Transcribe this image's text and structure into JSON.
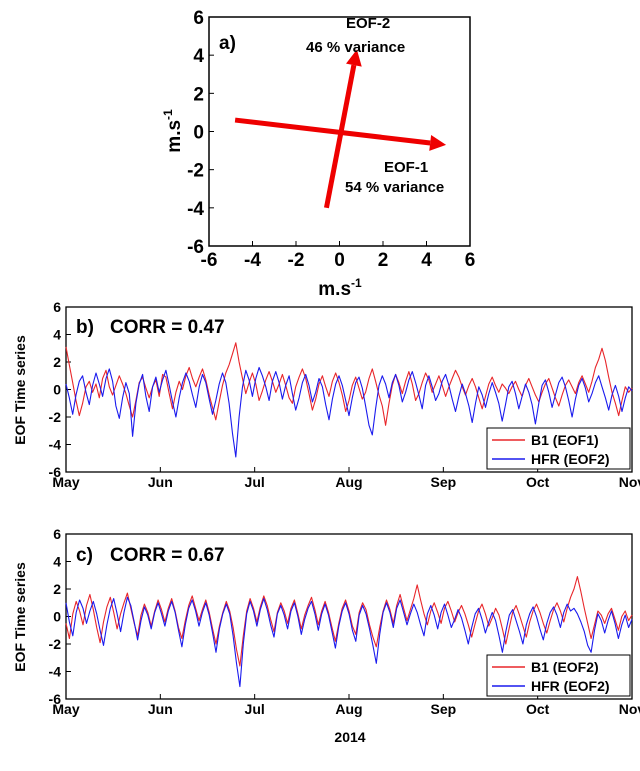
{
  "chart_data": [
    {
      "type": "scatter",
      "panel_label": "a)",
      "xlabel": "m.s-1",
      "ylabel": "m.s-1",
      "xlim": [
        -6,
        6
      ],
      "ylim": [
        -6,
        6
      ],
      "xticks": [
        -6,
        -4,
        -2,
        0,
        2,
        4,
        6
      ],
      "yticks": [
        6,
        4,
        2,
        0,
        -2,
        -4,
        -6
      ],
      "vectors": [
        {
          "name": "EOF-1",
          "label": "EOF-1",
          "variance_label": "54 % variance",
          "color": "#ee0000",
          "from": [
            -4.8,
            0.6
          ],
          "to": [
            4.9,
            -0.7
          ]
        },
        {
          "name": "EOF-2",
          "label": "EOF-2",
          "variance_label": "46 % variance",
          "color": "#ee0000",
          "from": [
            -0.6,
            -4.0
          ],
          "to": [
            0.8,
            4.3
          ]
        }
      ],
      "grid": false
    },
    {
      "type": "line",
      "panel_label": "b)",
      "annotation": "CORR = 0.47",
      "ylabel": "EOF Time series",
      "xlabel": "",
      "ylim": [
        -6,
        6
      ],
      "yticks": [
        6,
        4,
        2,
        0,
        -2,
        -4,
        -6
      ],
      "xticks": [
        "May",
        "Jun",
        "Jul",
        "Aug",
        "Sep",
        "Oct",
        "Nov"
      ],
      "legend_position": "bottom-right",
      "series": [
        {
          "name": "B1 (EOF1)",
          "color": "#e8262a",
          "values": [
            3.1,
            1.8,
            0.5,
            -0.8,
            -1.9,
            -1.0,
            0.2,
            0.6,
            -0.2,
            0.4,
            -0.6,
            0.8,
            1.4,
            0.2,
            -0.4,
            0.3,
            1.0,
            0.4,
            -0.3,
            -1.2,
            -2.0,
            -0.8,
            0.5,
            0.9,
            0.1,
            -0.6,
            0.2,
            0.7,
            -0.5,
            1.1,
            0.9,
            -0.3,
            -1.4,
            -0.2,
            0.6,
            0.0,
            1.0,
            1.6,
            0.8,
            0.2,
            0.9,
            1.5,
            0.7,
            -0.4,
            -1.3,
            -2.2,
            -0.9,
            0.3,
            1.2,
            1.8,
            2.6,
            3.4,
            2.0,
            0.8,
            -0.3,
            0.5,
            1.2,
            0.4,
            -0.8,
            -0.1,
            0.7,
            1.3,
            0.6,
            -0.2,
            0.4,
            1.1,
            0.3,
            -0.6,
            -1.0,
            0.2,
            0.9,
            1.5,
            0.8,
            -0.3,
            -1.5,
            -0.7,
            0.4,
            1.0,
            0.2,
            -0.5,
            0.6,
            1.2,
            0.5,
            -0.4,
            -1.6,
            -0.8,
            0.3,
            0.9,
            0.1,
            -0.7,
            -0.2,
            0.8,
            1.5,
            0.6,
            -0.4,
            -1.2,
            -2.6,
            -1.0,
            0.3,
            1.1,
            0.5,
            -0.3,
            0.6,
            1.3,
            0.4,
            -0.8,
            -0.3,
            0.5,
            1.2,
            0.7,
            -0.2,
            0.4,
            1.0,
            0.3,
            -0.5,
            0.2,
            0.8,
            1.4,
            0.9,
            0.2,
            -0.4,
            0.3,
            0.8,
            0.2,
            -0.6,
            -1.4,
            -0.5,
            0.4,
            0.9,
            0.3,
            -0.2,
            0.4,
            0.1,
            -0.3,
            0.2,
            0.6,
            0.0,
            -0.5,
            0.3,
            0.8,
            0.2,
            -0.4,
            -0.9,
            -0.2,
            0.4,
            0.8,
            0.1,
            -0.6,
            -1.2,
            -0.4,
            0.3,
            0.7,
            0.2,
            -0.3,
            0.5,
            1.0,
            0.4,
            -0.2,
            0.6,
            1.6,
            2.2,
            3.0,
            2.1,
            0.9,
            -0.2,
            -1.0,
            -1.9,
            -0.8,
            0.2,
            -0.2,
            0.1
          ]
        },
        {
          "name": "HFR (EOF2)",
          "color": "#1a1aee",
          "values": [
            0.4,
            -0.6,
            -1.8,
            -0.4,
            0.6,
            1.0,
            -0.2,
            -1.1,
            0.3,
            1.2,
            0.4,
            -0.5,
            0.8,
            1.5,
            0.6,
            -1.2,
            -2.1,
            -0.6,
            0.5,
            -0.3,
            -3.4,
            -1.0,
            0.4,
            1.1,
            -0.5,
            -1.6,
            0.2,
            0.9,
            -0.2,
            0.7,
            1.4,
            0.3,
            -0.9,
            -2.0,
            -0.6,
            0.5,
            1.2,
            0.6,
            -0.4,
            -1.3,
            0.2,
            1.1,
            0.5,
            -0.7,
            -1.8,
            -0.8,
            0.4,
            1.2,
            0.5,
            -1.0,
            -3.2,
            -4.9,
            -2.0,
            0.2,
            1.4,
            0.7,
            -0.5,
            0.8,
            1.6,
            1.0,
            0.2,
            -0.8,
            0.6,
            1.3,
            0.5,
            -0.7,
            0.3,
            1.0,
            -0.3,
            -1.5,
            -0.6,
            0.5,
            1.1,
            0.3,
            -0.9,
            -0.2,
            0.8,
            0.2,
            -1.1,
            -2.2,
            -0.7,
            0.4,
            1.0,
            0.3,
            -0.8,
            -1.9,
            -0.6,
            0.5,
            0.9,
            0.1,
            -1.2,
            -2.6,
            -3.3,
            -1.4,
            0.3,
            1.0,
            0.4,
            -0.6,
            0.5,
            1.1,
            0.3,
            -0.9,
            -0.2,
            0.7,
            1.3,
            0.5,
            -0.4,
            -1.4,
            0.3,
            1.0,
            0.2,
            -0.8,
            -0.3,
            0.6,
            1.1,
            0.3,
            -0.7,
            -1.6,
            -0.5,
            0.4,
            -0.3,
            -1.2,
            -2.4,
            -1.0,
            0.2,
            -0.4,
            -1.3,
            -0.3,
            0.5,
            -0.2,
            -1.0,
            -2.3,
            -1.1,
            0.2,
            0.6,
            -0.3,
            -1.4,
            -0.5,
            0.4,
            -0.2,
            -1.1,
            -2.5,
            -1.0,
            0.3,
            0.7,
            -0.2,
            -1.3,
            -0.4,
            0.5,
            0.9,
            0.2,
            -0.8,
            -2.0,
            -0.7,
            0.3,
            0.8,
            0.1,
            -0.9,
            -0.3,
            0.5,
            1.0,
            0.2,
            -0.6,
            -1.5,
            -0.4,
            0.3,
            -0.5,
            -1.6,
            -0.6,
            0.2,
            -0.1
          ]
        }
      ]
    },
    {
      "type": "line",
      "panel_label": "c)",
      "annotation": "CORR = 0.67",
      "ylabel": "EOF Time series",
      "xlabel": "2014",
      "ylim": [
        -6,
        6
      ],
      "yticks": [
        6,
        4,
        2,
        0,
        -2,
        -4,
        -6
      ],
      "xticks": [
        "May",
        "Jun",
        "Jul",
        "Aug",
        "Sep",
        "Oct",
        "Nov"
      ],
      "legend_position": "bottom-right",
      "series": [
        {
          "name": "B1 (EOF2)",
          "color": "#e8262a",
          "values": [
            -0.5,
            -1.6,
            0.2,
            1.1,
            0.4,
            -0.6,
            0.8,
            1.6,
            0.5,
            -0.8,
            -1.9,
            -0.4,
            0.7,
            1.4,
            0.3,
            -0.9,
            0.2,
            1.0,
            1.7,
            0.6,
            -0.5,
            -1.4,
            0.1,
            0.9,
            0.3,
            -0.7,
            0.4,
            1.2,
            0.5,
            -0.4,
            0.6,
            1.3,
            0.4,
            -0.8,
            -1.6,
            -0.3,
            0.8,
            1.5,
            0.6,
            -0.3,
            0.5,
            1.2,
            0.3,
            -0.9,
            -2.0,
            -0.7,
            0.3,
            1.1,
            0.4,
            -0.8,
            -2.4,
            -3.6,
            -1.4,
            0.4,
            1.3,
            0.6,
            -0.4,
            0.7,
            1.5,
            0.8,
            -0.2,
            -1.1,
            0.3,
            1.0,
            0.4,
            -0.5,
            0.6,
            1.2,
            0.2,
            -0.9,
            0.1,
            0.8,
            1.4,
            0.5,
            -0.6,
            0.4,
            1.1,
            0.3,
            -0.8,
            -1.8,
            -0.5,
            0.6,
            1.2,
            0.4,
            -0.7,
            -1.3,
            0.3,
            1.0,
            0.5,
            -0.6,
            -1.5,
            -2.2,
            -0.8,
            0.4,
            1.2,
            0.5,
            -0.5,
            0.8,
            1.6,
            0.6,
            -0.3,
            0.5,
            1.3,
            2.3,
            1.2,
            0.2,
            -0.6,
            0.4,
            1.0,
            0.3,
            -0.5,
            0.6,
            1.1,
            0.4,
            -0.4,
            0.3,
            0.8,
            0.2,
            -0.6,
            -1.5,
            -0.5,
            0.4,
            0.9,
            0.2,
            -0.7,
            -0.1,
            0.6,
            0.1,
            -0.9,
            -2.0,
            -0.8,
            0.3,
            0.8,
            0.1,
            -0.7,
            -1.5,
            -0.4,
            0.4,
            0.9,
            0.3,
            -0.5,
            -1.2,
            -0.3,
            0.5,
            1.0,
            0.4,
            -0.4,
            0.6,
            1.4,
            2.0,
            2.9,
            1.8,
            0.6,
            -0.5,
            -1.6,
            -0.6,
            0.4,
            0.1,
            -0.5,
            0.2,
            0.6,
            -0.2,
            -1.0,
            0.0,
            0.4,
            -0.3,
            0.1
          ]
        },
        {
          "name": "HFR (EOF2)",
          "color": "#1a1aee",
          "values": [
            1.0,
            -0.4,
            -1.4,
            0.3,
            1.2,
            0.6,
            -0.5,
            0.4,
            1.1,
            0.2,
            -1.0,
            -2.1,
            -0.6,
            0.6,
            1.3,
            0.2,
            -1.1,
            0.3,
            1.4,
            0.8,
            -0.4,
            -1.7,
            -0.3,
            0.7,
            0.1,
            -0.9,
            0.3,
            1.0,
            0.2,
            -0.7,
            0.4,
            1.1,
            0.3,
            -1.0,
            -2.2,
            -0.6,
            0.6,
            1.2,
            0.4,
            -0.7,
            0.3,
            1.0,
            0.1,
            -1.2,
            -2.6,
            -0.9,
            0.2,
            0.9,
            0.2,
            -1.4,
            -3.4,
            -5.1,
            -2.0,
            0.2,
            1.1,
            0.4,
            -0.7,
            0.5,
            1.3,
            0.5,
            -0.6,
            -1.5,
            0.2,
            0.8,
            0.1,
            -0.9,
            0.4,
            1.0,
            0.0,
            -1.3,
            -0.2,
            0.6,
            1.1,
            0.2,
            -1.0,
            0.2,
            0.9,
            0.1,
            -1.1,
            -2.3,
            -0.7,
            0.4,
            1.0,
            0.2,
            -1.0,
            -1.8,
            0.1,
            0.8,
            0.2,
            -0.9,
            -2.1,
            -3.4,
            -1.3,
            0.3,
            1.0,
            0.3,
            -0.8,
            0.6,
            1.2,
            0.3,
            -0.6,
            0.2,
            0.9,
            0.3,
            -0.6,
            -1.4,
            0.2,
            0.8,
            0.1,
            -0.9,
            0.3,
            0.9,
            0.1,
            -0.8,
            -0.2,
            0.5,
            -0.1,
            -1.0,
            -2.0,
            -0.8,
            0.2,
            0.6,
            -0.2,
            -1.2,
            -0.4,
            0.3,
            -0.3,
            -1.4,
            -2.6,
            -1.1,
            0.1,
            0.5,
            -0.3,
            -1.1,
            -2.0,
            -0.6,
            0.2,
            0.7,
            0.0,
            -0.9,
            -1.7,
            -0.5,
            0.3,
            0.7,
            0.1,
            -0.8,
            0.3,
            0.9,
            0.4,
            0.6,
            0.2,
            -0.4,
            -1.1,
            -2.1,
            -2.6,
            -1.0,
            0.2,
            -0.3,
            -1.2,
            -0.3,
            0.4,
            -0.5,
            -1.6,
            -0.6,
            0.1,
            -0.8,
            -0.2
          ]
        }
      ]
    }
  ]
}
